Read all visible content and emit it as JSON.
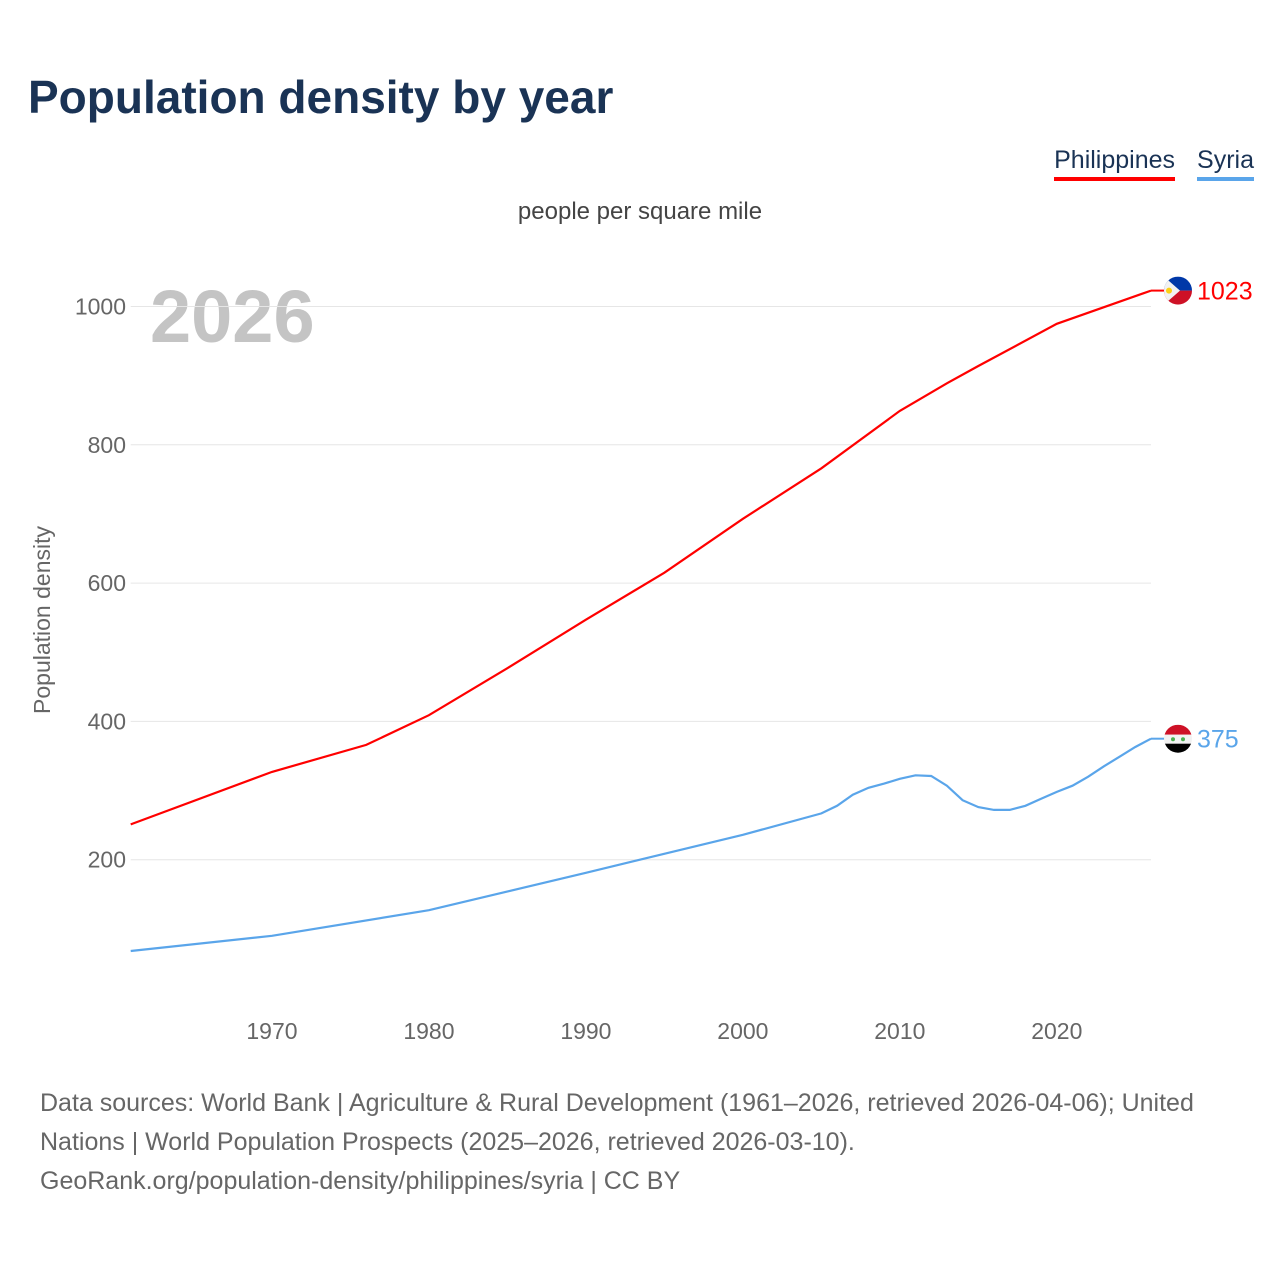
{
  "title": "Population density by year",
  "legend": [
    {
      "label": "Philippines",
      "color": "#ff0000"
    },
    {
      "label": "Syria",
      "color": "#5aa5ea"
    }
  ],
  "subtitle": "people per square mile",
  "year_watermark": "2026",
  "source_lines": [
    "Data sources: World Bank | Agriculture & Rural Development (1961–2026, retrieved 2026-04-06); United",
    "Nations | World Population Prospects (2025–2026, retrieved 2026-03-10).",
    "GeoRank.org/population-density/philippines/syria | CC BY"
  ],
  "chart_data": {
    "type": "line",
    "title": "Population density by year",
    "subtitle": "people per square mile",
    "xlabel": "",
    "ylabel": "Population density",
    "xlim": [
      1961,
      2026
    ],
    "ylim": [
      0,
      1050
    ],
    "x_ticks": [
      "1970",
      "1980",
      "1990",
      "2000",
      "2010",
      "2020"
    ],
    "y_ticks": [
      "200",
      "400",
      "600",
      "800",
      "1000"
    ],
    "grid": true,
    "legend_position": "top-right",
    "series": [
      {
        "name": "Philippines",
        "color": "#ff0000",
        "end_label": "1023",
        "flag": "philippines-flag",
        "points": [
          [
            1961,
            251
          ],
          [
            1970,
            327
          ],
          [
            1976,
            366
          ],
          [
            1980,
            409
          ],
          [
            1985,
            477
          ],
          [
            1990,
            547
          ],
          [
            1995,
            615
          ],
          [
            2000,
            693
          ],
          [
            2005,
            766
          ],
          [
            2010,
            849
          ],
          [
            2013,
            889
          ],
          [
            2015,
            914
          ],
          [
            2020,
            975
          ],
          [
            2026,
            1023
          ]
        ]
      },
      {
        "name": "Syria",
        "color": "#5aa5ea",
        "end_label": "375",
        "flag": "syria-flag",
        "points": [
          [
            1961,
            68
          ],
          [
            1970,
            90
          ],
          [
            1980,
            127
          ],
          [
            1990,
            181
          ],
          [
            2000,
            236
          ],
          [
            2005,
            267
          ],
          [
            2006,
            278
          ],
          [
            2007,
            294
          ],
          [
            2008,
            304
          ],
          [
            2009,
            310
          ],
          [
            2010,
            317
          ],
          [
            2011,
            322
          ],
          [
            2012,
            321
          ],
          [
            2013,
            307
          ],
          [
            2014,
            286
          ],
          [
            2015,
            276
          ],
          [
            2016,
            272
          ],
          [
            2017,
            272
          ],
          [
            2018,
            278
          ],
          [
            2019,
            288
          ],
          [
            2020,
            298
          ],
          [
            2021,
            307
          ],
          [
            2022,
            320
          ],
          [
            2023,
            335
          ],
          [
            2024,
            349
          ],
          [
            2025,
            363
          ],
          [
            2026,
            375
          ]
        ]
      }
    ]
  }
}
